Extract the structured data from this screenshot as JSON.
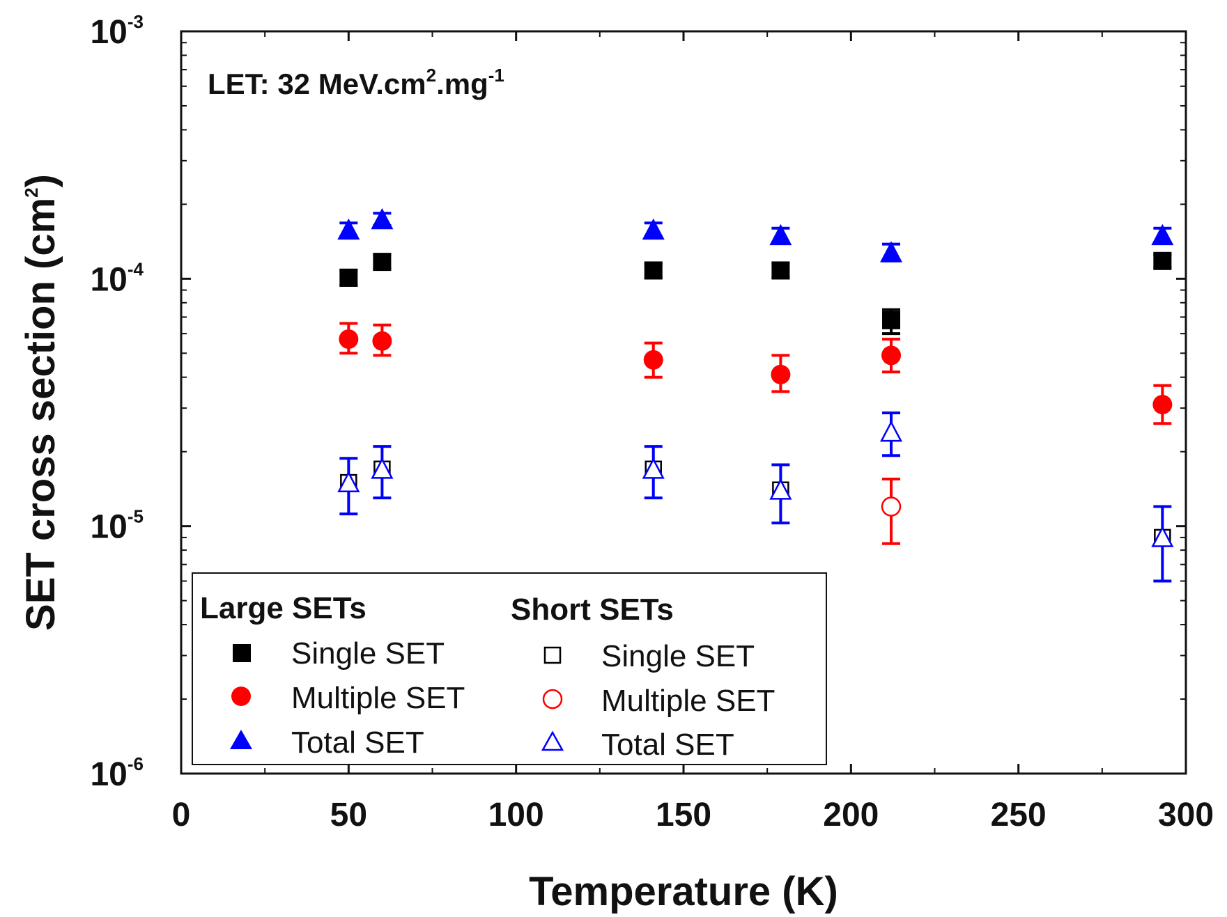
{
  "chart_data": {
    "type": "scatter",
    "title": "",
    "annotation": {
      "prefix": "LET: 32 MeV.cm",
      "sup1": "2",
      "mid": ".mg",
      "sup2": "-1"
    },
    "xlabel": "Temperature (K)",
    "ylabel": {
      "main": "SET cross section (cm",
      "sup": "2",
      "end": ")"
    },
    "x_scale": "linear",
    "y_scale": "log",
    "xlim": [
      0,
      300
    ],
    "ylim": [
      1e-06,
      0.001
    ],
    "x_ticks": [
      {
        "value": 0,
        "label": "0"
      },
      {
        "value": 50,
        "label": "50"
      },
      {
        "value": 100,
        "label": "100"
      },
      {
        "value": 150,
        "label": "150"
      },
      {
        "value": 200,
        "label": "200"
      },
      {
        "value": 250,
        "label": "250"
      },
      {
        "value": 300,
        "label": "300"
      }
    ],
    "y_ticks": [
      {
        "value": 0.001,
        "base": "10",
        "exp": "-3"
      },
      {
        "value": 0.0001,
        "base": "10",
        "exp": "-4"
      },
      {
        "value": 1e-05,
        "base": "10",
        "exp": "-5"
      },
      {
        "value": 1e-06,
        "base": "10",
        "exp": "-6"
      }
    ],
    "grid": false,
    "legend": {
      "placement": "bottom-left",
      "groups": [
        {
          "heading": "Large SETs",
          "entries": [
            "Single SET",
            "Multiple SET",
            "Total SET"
          ]
        },
        {
          "heading": "Short SETs",
          "entries": [
            "Single SET",
            "Multiple SET",
            "Total SET"
          ]
        }
      ]
    },
    "series": [
      {
        "name": "Large Single SET",
        "group": "Large SETs",
        "marker": "square",
        "filled": true,
        "color": "#000000",
        "points": [
          {
            "x": 50,
            "y": 0.000101,
            "lo": 9.4e-05,
            "hi": 0.000108
          },
          {
            "x": 60,
            "y": 0.000117,
            "lo": 0.00011,
            "hi": 0.000125
          },
          {
            "x": 141,
            "y": 0.000108,
            "lo": 0.000101,
            "hi": 0.000115
          },
          {
            "x": 179,
            "y": 0.000108,
            "lo": 0.000101,
            "hi": 0.000115
          },
          {
            "x": 212,
            "y": 6.8e-05,
            "lo": 6e-05,
            "hi": 7.5e-05
          },
          {
            "x": 293,
            "y": 0.000118,
            "lo": 0.000111,
            "hi": 0.000125
          }
        ]
      },
      {
        "name": "Large Multiple SET",
        "group": "Large SETs",
        "marker": "circle",
        "filled": true,
        "color": "#ff0000",
        "points": [
          {
            "x": 50,
            "y": 5.7e-05,
            "lo": 5e-05,
            "hi": 6.6e-05
          },
          {
            "x": 60,
            "y": 5.6e-05,
            "lo": 4.9e-05,
            "hi": 6.5e-05
          },
          {
            "x": 141,
            "y": 4.7e-05,
            "lo": 4e-05,
            "hi": 5.5e-05
          },
          {
            "x": 179,
            "y": 4.1e-05,
            "lo": 3.5e-05,
            "hi": 4.9e-05
          },
          {
            "x": 212,
            "y": 4.9e-05,
            "lo": 4.2e-05,
            "hi": 5.7e-05
          },
          {
            "x": 293,
            "y": 3.1e-05,
            "lo": 2.6e-05,
            "hi": 3.7e-05
          }
        ]
      },
      {
        "name": "Large Total SET",
        "group": "Large SETs",
        "marker": "triangle",
        "filled": true,
        "color": "#0000ff",
        "points": [
          {
            "x": 50,
            "y": 0.000158,
            "lo": 0.000148,
            "hi": 0.000168
          },
          {
            "x": 60,
            "y": 0.000174,
            "lo": 0.000164,
            "hi": 0.000184
          },
          {
            "x": 141,
            "y": 0.000158,
            "lo": 0.000148,
            "hi": 0.000168
          },
          {
            "x": 179,
            "y": 0.00015,
            "lo": 0.00014,
            "hi": 0.00016
          },
          {
            "x": 212,
            "y": 0.000128,
            "lo": 0.000118,
            "hi": 0.000138
          },
          {
            "x": 293,
            "y": 0.00015,
            "lo": 0.00014,
            "hi": 0.00016
          }
        ]
      },
      {
        "name": "Short Single SET",
        "group": "Short SETs",
        "marker": "square",
        "filled": false,
        "color": "#000000",
        "points": [
          {
            "x": 50,
            "y": 1.5e-05
          },
          {
            "x": 60,
            "y": 1.7e-05
          },
          {
            "x": 141,
            "y": 1.7e-05
          },
          {
            "x": 179,
            "y": 1.4e-05
          },
          {
            "x": 293,
            "y": 9e-06
          }
        ]
      },
      {
        "name": "Short Multiple SET",
        "group": "Short SETs",
        "marker": "circle",
        "filled": false,
        "color": "#ff0000",
        "points": [
          {
            "x": 212,
            "y": 1.2e-05,
            "lo": 8.5e-06,
            "hi": 1.55e-05
          }
        ]
      },
      {
        "name": "Short Total SET",
        "group": "Short SETs",
        "marker": "triangle",
        "filled": false,
        "color": "#0000ff",
        "points": [
          {
            "x": 50,
            "y": 1.5e-05,
            "lo": 1.12e-05,
            "hi": 1.88e-05
          },
          {
            "x": 60,
            "y": 1.7e-05,
            "lo": 1.3e-05,
            "hi": 2.1e-05
          },
          {
            "x": 141,
            "y": 1.7e-05,
            "lo": 1.3e-05,
            "hi": 2.1e-05
          },
          {
            "x": 179,
            "y": 1.4e-05,
            "lo": 1.03e-05,
            "hi": 1.77e-05
          },
          {
            "x": 212,
            "y": 2.4e-05,
            "lo": 1.93e-05,
            "hi": 2.87e-05
          },
          {
            "x": 293,
            "y": 9e-06,
            "lo": 6e-06,
            "hi": 1.2e-05
          }
        ]
      }
    ]
  }
}
